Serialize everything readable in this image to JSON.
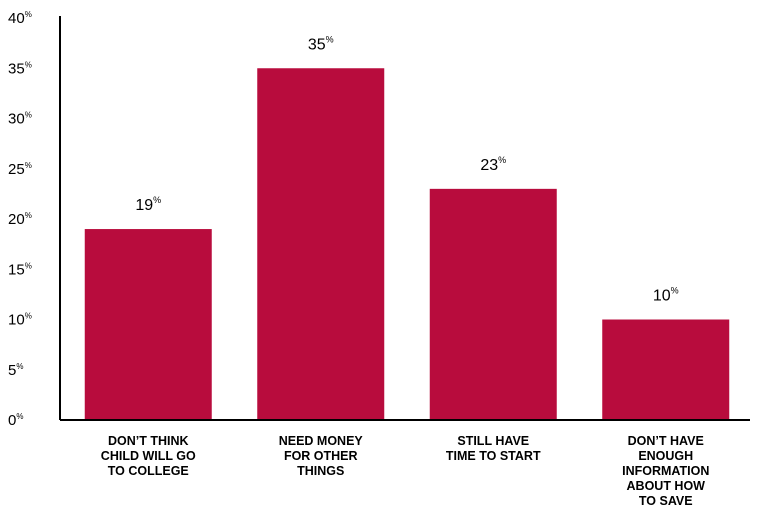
{
  "chart_data": {
    "type": "bar",
    "title": "",
    "xlabel": "",
    "ylabel": "",
    "categories": [
      [
        "DON’T THINK",
        "CHILD WILL GO",
        "TO COLLEGE"
      ],
      [
        "NEED MONEY",
        "FOR OTHER",
        "THINGS"
      ],
      [
        "STILL HAVE",
        "TIME TO START"
      ],
      [
        "DON’T HAVE",
        "ENOUGH",
        "INFORMATION",
        "ABOUT HOW",
        "TO SAVE"
      ]
    ],
    "values": [
      19,
      35,
      23,
      10
    ],
    "value_suffix": "%",
    "ylim": [
      0,
      40
    ],
    "yticks": [
      0,
      5,
      10,
      15,
      20,
      25,
      30,
      35,
      40
    ],
    "grid": false,
    "legend": "none",
    "bar_color": "#B80C3D",
    "axis_color": "#000000"
  }
}
